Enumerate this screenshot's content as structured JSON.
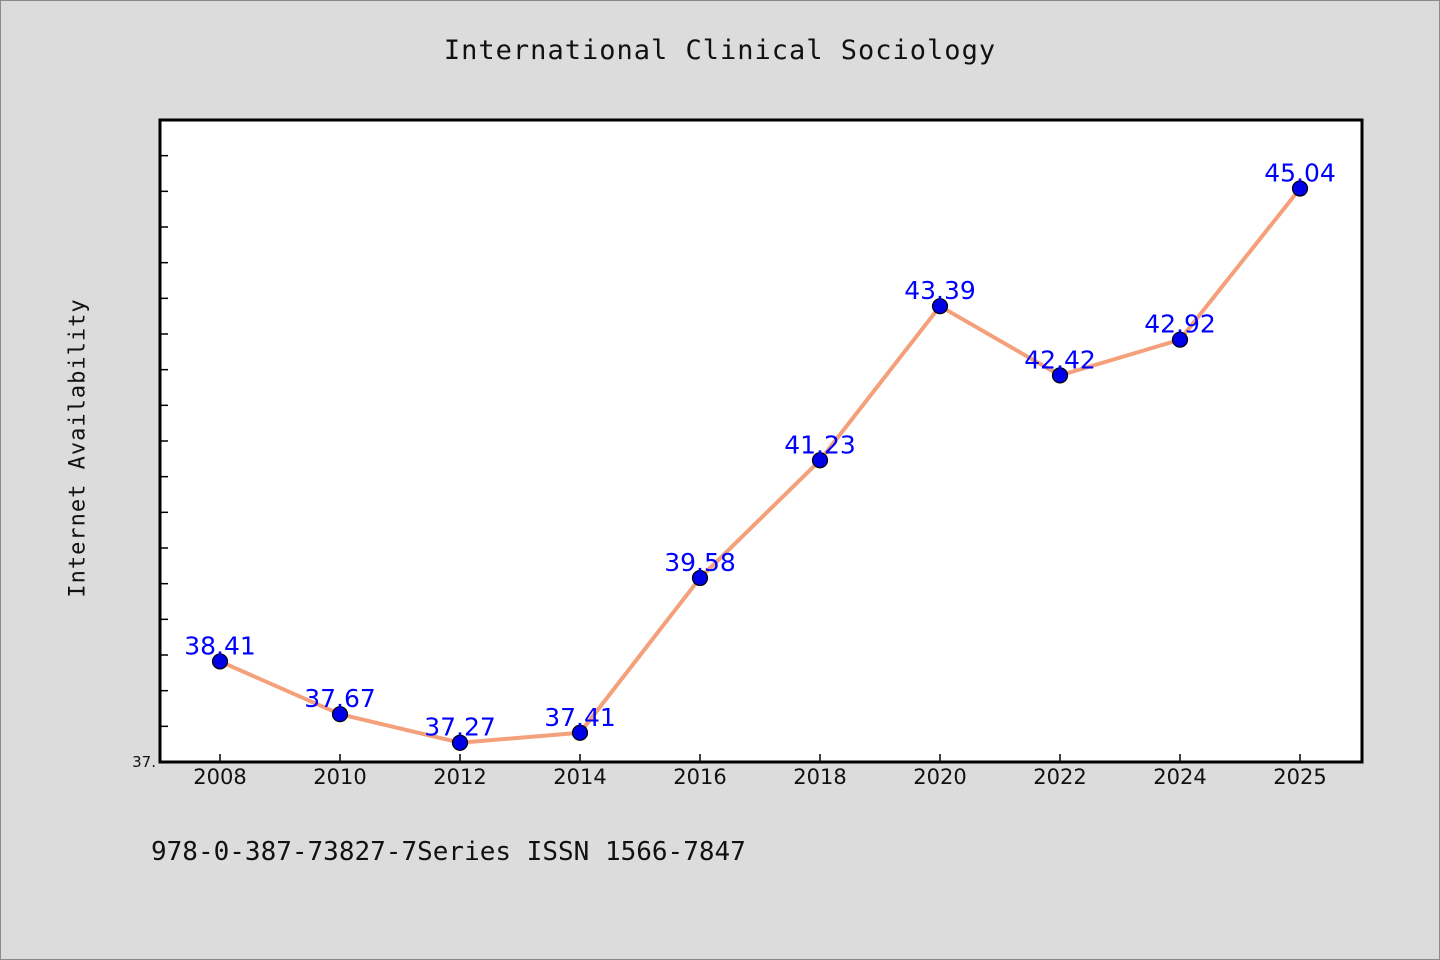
{
  "chart_data": {
    "type": "line",
    "title": "International Clinical Sociology",
    "xlabel": "",
    "ylabel": "Internet Availability",
    "categories": [
      "2008",
      "2010",
      "2012",
      "2014",
      "2016",
      "2018",
      "2020",
      "2022",
      "2024",
      "2025"
    ],
    "series": [
      {
        "values": [
          38.41,
          37.67,
          37.27,
          37.41,
          39.58,
          41.23,
          43.39,
          42.42,
          42.92,
          45.04
        ],
        "labels": [
          "38.41",
          "37.67",
          "37.27",
          "37.41",
          "39.58",
          "41.23",
          "43.39",
          "42.42",
          "42.92",
          "45.04"
        ]
      }
    ],
    "ylim": [
      37.0,
      46.0
    ],
    "yticks_labeled": [
      "37."
    ],
    "grid": false,
    "legend": "none",
    "colors": {
      "line": "#f4a07a",
      "marker": "#0000e6",
      "label": "#0000ff",
      "plot_background": "#ffffff",
      "figure_background": "#dcdcdc"
    }
  },
  "footer_text": "978-0-387-73827-7Series ISSN 1566-7847"
}
